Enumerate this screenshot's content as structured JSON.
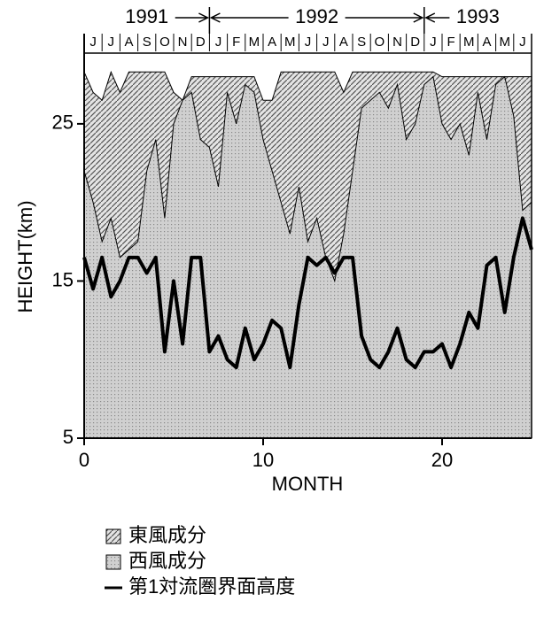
{
  "chart_data": {
    "type": "area",
    "xlabel": "MONTH",
    "ylabel": "HEIGHT(km)",
    "years": [
      "1991",
      "1992",
      "1993"
    ],
    "year_starts": [
      0,
      7,
      19
    ],
    "months": [
      "J",
      "J",
      "A",
      "S",
      "O",
      "N",
      "D",
      "J",
      "F",
      "M",
      "A",
      "M",
      "J",
      "J",
      "A",
      "S",
      "O",
      "N",
      "D",
      "J",
      "F",
      "M",
      "A",
      "M",
      "J"
    ],
    "x": [
      0,
      0.5,
      1,
      1.5,
      2,
      2.5,
      3,
      3.5,
      4,
      4.5,
      5,
      5.5,
      6,
      6.5,
      7,
      7.5,
      8,
      8.5,
      9,
      9.5,
      10,
      10.5,
      11,
      11.5,
      12,
      12.5,
      13,
      13.5,
      14,
      14.5,
      15,
      15.5,
      16,
      16.5,
      17,
      17.5,
      18,
      18.5,
      19,
      19.5,
      20,
      20.5,
      21,
      21.5,
      22,
      22.5,
      23,
      23.5,
      24,
      24.5,
      25
    ],
    "series": [
      {
        "name": "東風成分",
        "color": "#9a9a9a",
        "pattern": "hatch",
        "values": [
          28.3,
          27,
          26.5,
          28.3,
          27,
          28.3,
          28.3,
          28.3,
          28.3,
          28.3,
          27,
          26.5,
          28,
          28,
          28,
          28,
          28,
          28,
          28,
          28,
          26.5,
          26.5,
          28.3,
          28.3,
          28.3,
          28.3,
          28.3,
          28.3,
          28.3,
          27,
          28.3,
          28.3,
          28.3,
          28.3,
          28.3,
          28.3,
          28.3,
          28.3,
          28.3,
          28.3,
          28,
          28,
          28,
          28,
          28,
          28,
          28,
          28,
          28,
          28,
          28
        ]
      },
      {
        "name": "西風成分",
        "color": "#bdbdbd",
        "pattern": "dots",
        "values": [
          22,
          20,
          17.5,
          19,
          16.5,
          17,
          17.5,
          22,
          24,
          19,
          25,
          26.5,
          27,
          24,
          23.5,
          21,
          27,
          25,
          27.5,
          27,
          24,
          22,
          20,
          18,
          21,
          17.5,
          19,
          16.5,
          15,
          18,
          22,
          26,
          26.5,
          27,
          26,
          27.5,
          24,
          25,
          27.5,
          28,
          25,
          24,
          25,
          23,
          27,
          24,
          27.5,
          28,
          25.5,
          19.5,
          20
        ]
      },
      {
        "name": "第1対流圏界面高度",
        "color": "#000000",
        "pattern": "line",
        "values": [
          16.5,
          14.5,
          16.5,
          14,
          15,
          16.5,
          16.5,
          15.5,
          16.5,
          10.5,
          15,
          11,
          16.5,
          16.5,
          10.5,
          11.5,
          10,
          9.5,
          12,
          10,
          11,
          12.5,
          12,
          9.5,
          13.5,
          16.5,
          16,
          16.5,
          15.5,
          16.5,
          16.5,
          11.5,
          10,
          9.5,
          10.5,
          12,
          10,
          9.5,
          10.5,
          10.5,
          11,
          9.5,
          11,
          13,
          12,
          16,
          16.5,
          13,
          16.5,
          19,
          17
        ]
      }
    ],
    "xlim": [
      0,
      25
    ],
    "xticks": [
      0,
      10,
      20
    ],
    "ylim": [
      5,
      29.5
    ],
    "yticks": [
      5,
      15,
      25
    ]
  }
}
